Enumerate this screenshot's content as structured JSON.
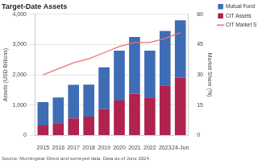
{
  "chart_data": {
    "type": "bar",
    "title": "Target-Date Assets",
    "source": "Source: Morningstar Direct and surveyed data. Data as of June 2024.",
    "y_label": "Assets (USD Billions)",
    "y2_label": "Market Share (%)",
    "categories": [
      "2015",
      "2016",
      "2017",
      "2018",
      "2019",
      "2020",
      "2021",
      "2022",
      "2023",
      "24-Jun"
    ],
    "stacked": true,
    "grid": true,
    "legend": "right",
    "series": [
      {
        "name": "Mutual Fund Assets",
        "type": "bar",
        "color": "#3e6db5",
        "values": [
          770,
          850,
          1110,
          1060,
          1380,
          1650,
          1870,
          1550,
          1800,
          1900
        ]
      },
      {
        "name": "CIT Assets",
        "type": "bar",
        "color": "#b0234f",
        "values": [
          330,
          400,
          560,
          620,
          870,
          1150,
          1380,
          1250,
          1650,
          1900
        ]
      },
      {
        "name": "CIT Market Share",
        "type": "line",
        "axis": "y2",
        "color": "#e8756f",
        "values": [
          30,
          33,
          36,
          38,
          41,
          44,
          46,
          46,
          48,
          51
        ]
      }
    ],
    "ylim": [
      0,
      4000
    ],
    "yticks": [
      0,
      {
        "value": 1000,
        "label": "1,000"
      },
      {
        "value": 2000,
        "label": "2,000"
      },
      {
        "value": 3000,
        "label": "3,000"
      },
      {
        "value": 4000,
        "label": "4,000"
      }
    ],
    "y2lim": [
      0,
      60
    ],
    "y2ticks": [
      0,
      15,
      30,
      45,
      60
    ]
  }
}
